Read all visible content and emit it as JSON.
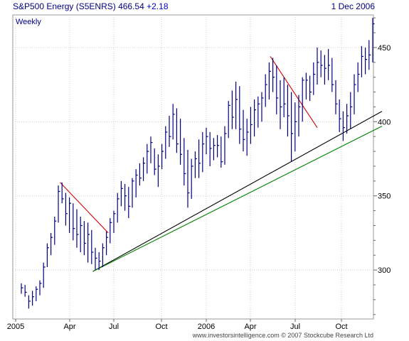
{
  "header": {
    "title": "S&P500 Energy (S5ENRS) 466.54",
    "change": "+2.18",
    "date": "1 Dec 2006"
  },
  "footer": {
    "credit": "www.investorsintelligence.com © 2007 Stockcube Research Ltd"
  },
  "chart_data": {
    "type": "ohlc",
    "period_label": "Weekly",
    "x_ticks": [
      "2005",
      "Apr",
      "Jul",
      "Oct",
      "2006",
      "Apr",
      "Jul",
      "Oct"
    ],
    "y_ticks": [
      300,
      350,
      400,
      450
    ],
    "ylim": [
      267,
      472
    ],
    "grid": true,
    "colors": {
      "bars": "#000080",
      "resistance": "#d00000",
      "support_black": "#000000",
      "support_green": "#008000",
      "grid": "#cccccc"
    },
    "bars": [
      [
        291,
        284,
        288
      ],
      [
        290,
        282,
        285
      ],
      [
        283,
        274,
        279
      ],
      [
        286,
        276,
        282
      ],
      [
        289,
        279,
        287
      ],
      [
        293,
        283,
        291
      ],
      [
        305,
        288,
        302
      ],
      [
        318,
        302,
        315
      ],
      [
        325,
        310,
        322
      ],
      [
        336,
        317,
        333
      ],
      [
        357,
        332,
        353
      ],
      [
        359,
        345,
        348
      ],
      [
        352,
        330,
        338
      ],
      [
        349,
        325,
        345
      ],
      [
        345,
        320,
        328
      ],
      [
        341,
        315,
        324
      ],
      [
        336,
        312,
        330
      ],
      [
        333,
        310,
        318
      ],
      [
        332,
        305,
        324
      ],
      [
        327,
        304,
        312
      ],
      [
        315,
        300,
        308
      ],
      [
        312,
        300,
        306
      ],
      [
        318,
        302,
        315
      ],
      [
        326,
        310,
        322
      ],
      [
        335,
        318,
        332
      ],
      [
        340,
        325,
        338
      ],
      [
        352,
        332,
        348
      ],
      [
        360,
        343,
        355
      ],
      [
        358,
        340,
        350
      ],
      [
        356,
        335,
        343
      ],
      [
        362,
        342,
        360
      ],
      [
        368,
        349,
        364
      ],
      [
        372,
        357,
        362
      ],
      [
        376,
        360,
        372
      ],
      [
        385,
        365,
        380
      ],
      [
        390,
        372,
        386
      ],
      [
        382,
        364,
        368
      ],
      [
        378,
        356,
        370
      ],
      [
        385,
        368,
        380
      ],
      [
        397,
        375,
        393
      ],
      [
        404,
        383,
        390
      ],
      [
        412,
        388,
        405
      ],
      [
        409,
        379,
        385
      ],
      [
        402,
        371,
        378
      ],
      [
        389,
        357,
        365
      ],
      [
        381,
        342,
        352
      ],
      [
        375,
        348,
        370
      ],
      [
        380,
        362,
        375
      ],
      [
        388,
        362,
        372
      ],
      [
        393,
        366,
        385
      ],
      [
        396,
        378,
        390
      ],
      [
        393,
        370,
        382
      ],
      [
        389,
        374,
        384
      ],
      [
        391,
        376,
        384
      ],
      [
        390,
        369,
        373
      ],
      [
        397,
        371,
        392
      ],
      [
        414,
        389,
        411
      ],
      [
        421,
        395,
        403
      ],
      [
        427,
        395,
        415
      ],
      [
        424,
        385,
        395
      ],
      [
        408,
        380,
        388
      ],
      [
        402,
        377,
        393
      ],
      [
        410,
        385,
        398
      ],
      [
        415,
        390,
        408
      ],
      [
        417,
        396,
        412
      ],
      [
        420,
        400,
        416
      ],
      [
        432,
        410,
        425
      ],
      [
        440,
        415,
        434
      ],
      [
        443,
        420,
        430
      ],
      [
        438,
        405,
        416
      ],
      [
        428,
        395,
        410
      ],
      [
        430,
        403,
        412
      ],
      [
        425,
        390,
        404
      ],
      [
        420,
        373,
        392
      ],
      [
        413,
        380,
        400
      ],
      [
        418,
        390,
        410
      ],
      [
        430,
        400,
        428
      ],
      [
        433,
        415,
        428
      ],
      [
        431,
        414,
        420
      ],
      [
        440,
        418,
        432
      ],
      [
        450,
        425,
        440
      ],
      [
        448,
        430,
        438
      ],
      [
        445,
        425,
        436
      ],
      [
        449,
        428,
        438
      ],
      [
        443,
        420,
        425
      ],
      [
        428,
        405,
        412
      ],
      [
        415,
        393,
        402
      ],
      [
        407,
        387,
        396
      ],
      [
        412,
        392,
        404
      ],
      [
        420,
        395,
        410
      ],
      [
        432,
        405,
        425
      ],
      [
        440,
        420,
        432
      ],
      [
        451,
        430,
        444
      ],
      [
        450,
        432,
        442
      ],
      [
        455,
        435,
        445
      ],
      [
        470,
        440,
        466
      ]
    ],
    "trendlines": [
      {
        "name": "resistance-2005",
        "color": "red",
        "from": [
          10.5,
          359
        ],
        "to": [
          23.5,
          325
        ]
      },
      {
        "name": "resistance-2006",
        "color": "red",
        "from": [
          67.3,
          444
        ],
        "to": [
          80,
          396
        ]
      },
      {
        "name": "support-black",
        "color": "black",
        "from": [
          19.3,
          299
        ],
        "to": [
          97.5,
          407
        ]
      },
      {
        "name": "support-green",
        "color": "green",
        "from": [
          19.3,
          299
        ],
        "to": [
          97.5,
          397
        ]
      }
    ]
  }
}
